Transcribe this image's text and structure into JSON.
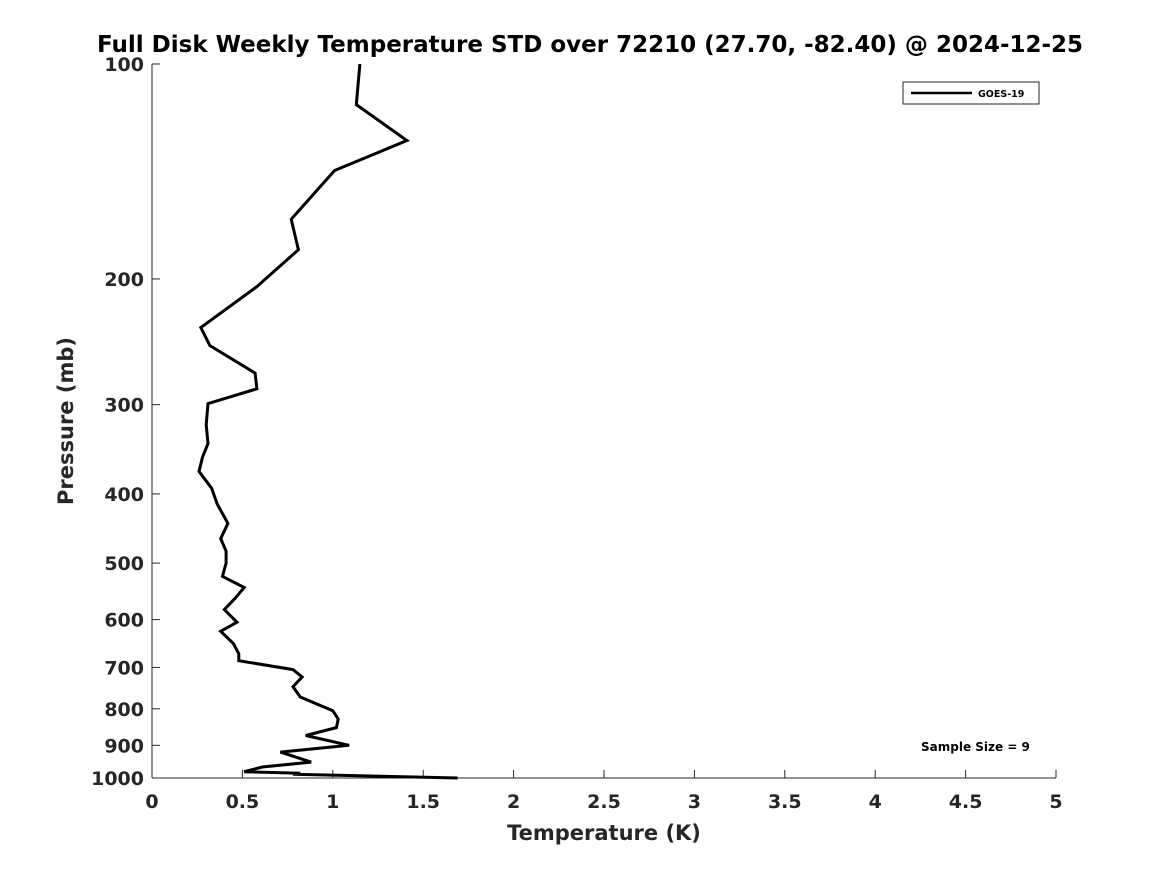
{
  "chart_data": {
    "type": "line",
    "title": "Full Disk Weekly Temperature STD over 72210 (27.70, -82.40) @ 2024-12-25",
    "xlabel": "Temperature (K)",
    "ylabel": "Pressure (mb)",
    "xlim": [
      0,
      5
    ],
    "ylim": [
      100,
      1000
    ],
    "y_scale": "log",
    "y_reversed": true,
    "grid": false,
    "legend_position": "top-right",
    "x_ticks": [
      "0",
      "0.5",
      "1",
      "1.5",
      "2",
      "2.5",
      "3",
      "3.5",
      "4",
      "4.5",
      "5"
    ],
    "y_ticks": [
      "100",
      "200",
      "300",
      "400",
      "500",
      "600",
      "700",
      "800",
      "900",
      "1000"
    ],
    "series": [
      {
        "name": "GOES-19",
        "color": "#000000",
        "x": [
          1.15,
          1.13,
          1.41,
          1.01,
          0.77,
          0.81,
          0.58,
          0.27,
          0.32,
          0.57,
          0.58,
          0.31,
          0.3,
          0.31,
          0.28,
          0.26,
          0.33,
          0.36,
          0.42,
          0.38,
          0.41,
          0.41,
          0.39,
          0.51,
          0.46,
          0.4,
          0.47,
          0.38,
          0.45,
          0.48,
          0.48,
          0.78,
          0.83,
          0.78,
          0.82,
          1.0,
          1.03,
          1.02,
          0.85,
          1.09,
          0.71,
          0.88,
          0.61,
          0.51,
          0.82,
          0.78,
          1.69
        ],
        "y": [
          100,
          114,
          128,
          141,
          165,
          182,
          205,
          234,
          248,
          271,
          285,
          299,
          320,
          340,
          355,
          372,
          393,
          413,
          440,
          462,
          481,
          500,
          522,
          541,
          560,
          581,
          605,
          623,
          648,
          670,
          685,
          705,
          722,
          745,
          770,
          805,
          827,
          850,
          872,
          900,
          920,
          950,
          965,
          980,
          985,
          988,
          1000
        ]
      }
    ],
    "annotations": [
      "Sample Size = 9"
    ]
  }
}
